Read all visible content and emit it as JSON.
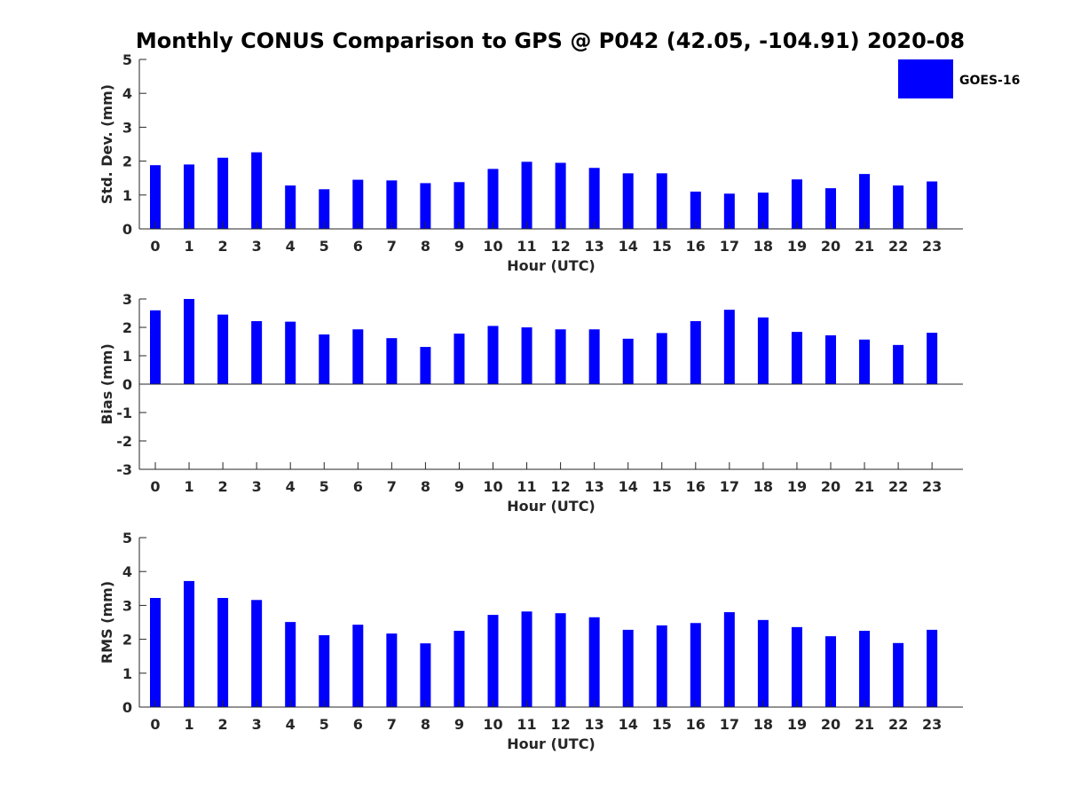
{
  "title": "Monthly CONUS Comparison to GPS @ P042 (42.05, -104.91) 2020-08",
  "legend": {
    "label": "GOES-16",
    "color": "#0000ff",
    "placement": "top-right"
  },
  "chart_data": [
    {
      "type": "bar",
      "name": "std_dev",
      "categories": [
        "0",
        "1",
        "2",
        "3",
        "4",
        "5",
        "6",
        "7",
        "8",
        "9",
        "10",
        "11",
        "12",
        "13",
        "14",
        "15",
        "16",
        "17",
        "18",
        "19",
        "20",
        "21",
        "22",
        "23"
      ],
      "series": [
        {
          "name": "GOES-16",
          "color": "#0000ff",
          "values": [
            1.88,
            1.9,
            2.1,
            2.26,
            1.28,
            1.17,
            1.45,
            1.43,
            1.35,
            1.38,
            1.77,
            1.98,
            1.95,
            1.8,
            1.64,
            1.64,
            1.1,
            1.04,
            1.07,
            1.46,
            1.2,
            1.62,
            1.28,
            1.4
          ]
        }
      ],
      "xlabel": "Hour (UTC)",
      "ylabel": "Std. Dev. (mm)",
      "ylim": [
        0,
        5
      ],
      "yticks": [
        "0",
        "1",
        "2",
        "3",
        "4",
        "5"
      ],
      "grid": false
    },
    {
      "type": "bar",
      "name": "bias",
      "categories": [
        "0",
        "1",
        "2",
        "3",
        "4",
        "5",
        "6",
        "7",
        "8",
        "9",
        "10",
        "11",
        "12",
        "13",
        "14",
        "15",
        "16",
        "17",
        "18",
        "19",
        "20",
        "21",
        "22",
        "23"
      ],
      "series": [
        {
          "name": "GOES-16",
          "color": "#0000ff",
          "values": [
            2.6,
            3.0,
            2.45,
            2.22,
            2.2,
            1.75,
            1.93,
            1.62,
            1.31,
            1.78,
            2.05,
            2.0,
            1.93,
            1.93,
            1.6,
            1.8,
            2.22,
            2.62,
            2.35,
            1.84,
            1.72,
            1.57,
            1.38,
            1.81
          ]
        }
      ],
      "xlabel": "Hour (UTC)",
      "ylabel": "Bias (mm)",
      "ylim": [
        -3,
        3
      ],
      "yticks": [
        "-3",
        "-2",
        "-1",
        "0",
        "1",
        "2",
        "3"
      ],
      "grid": false
    },
    {
      "type": "bar",
      "name": "rms",
      "categories": [
        "0",
        "1",
        "2",
        "3",
        "4",
        "5",
        "6",
        "7",
        "8",
        "9",
        "10",
        "11",
        "12",
        "13",
        "14",
        "15",
        "16",
        "17",
        "18",
        "19",
        "20",
        "21",
        "22",
        "23"
      ],
      "series": [
        {
          "name": "GOES-16",
          "color": "#0000ff",
          "values": [
            3.22,
            3.72,
            3.22,
            3.16,
            2.51,
            2.12,
            2.43,
            2.17,
            1.88,
            2.25,
            2.72,
            2.82,
            2.77,
            2.65,
            2.28,
            2.41,
            2.48,
            2.8,
            2.57,
            2.36,
            2.09,
            2.25,
            1.89,
            2.28
          ]
        }
      ],
      "xlabel": "Hour (UTC)",
      "ylabel": "RMS (mm)",
      "ylim": [
        0,
        5
      ],
      "yticks": [
        "0",
        "1",
        "2",
        "3",
        "4",
        "5"
      ],
      "grid": false
    }
  ]
}
